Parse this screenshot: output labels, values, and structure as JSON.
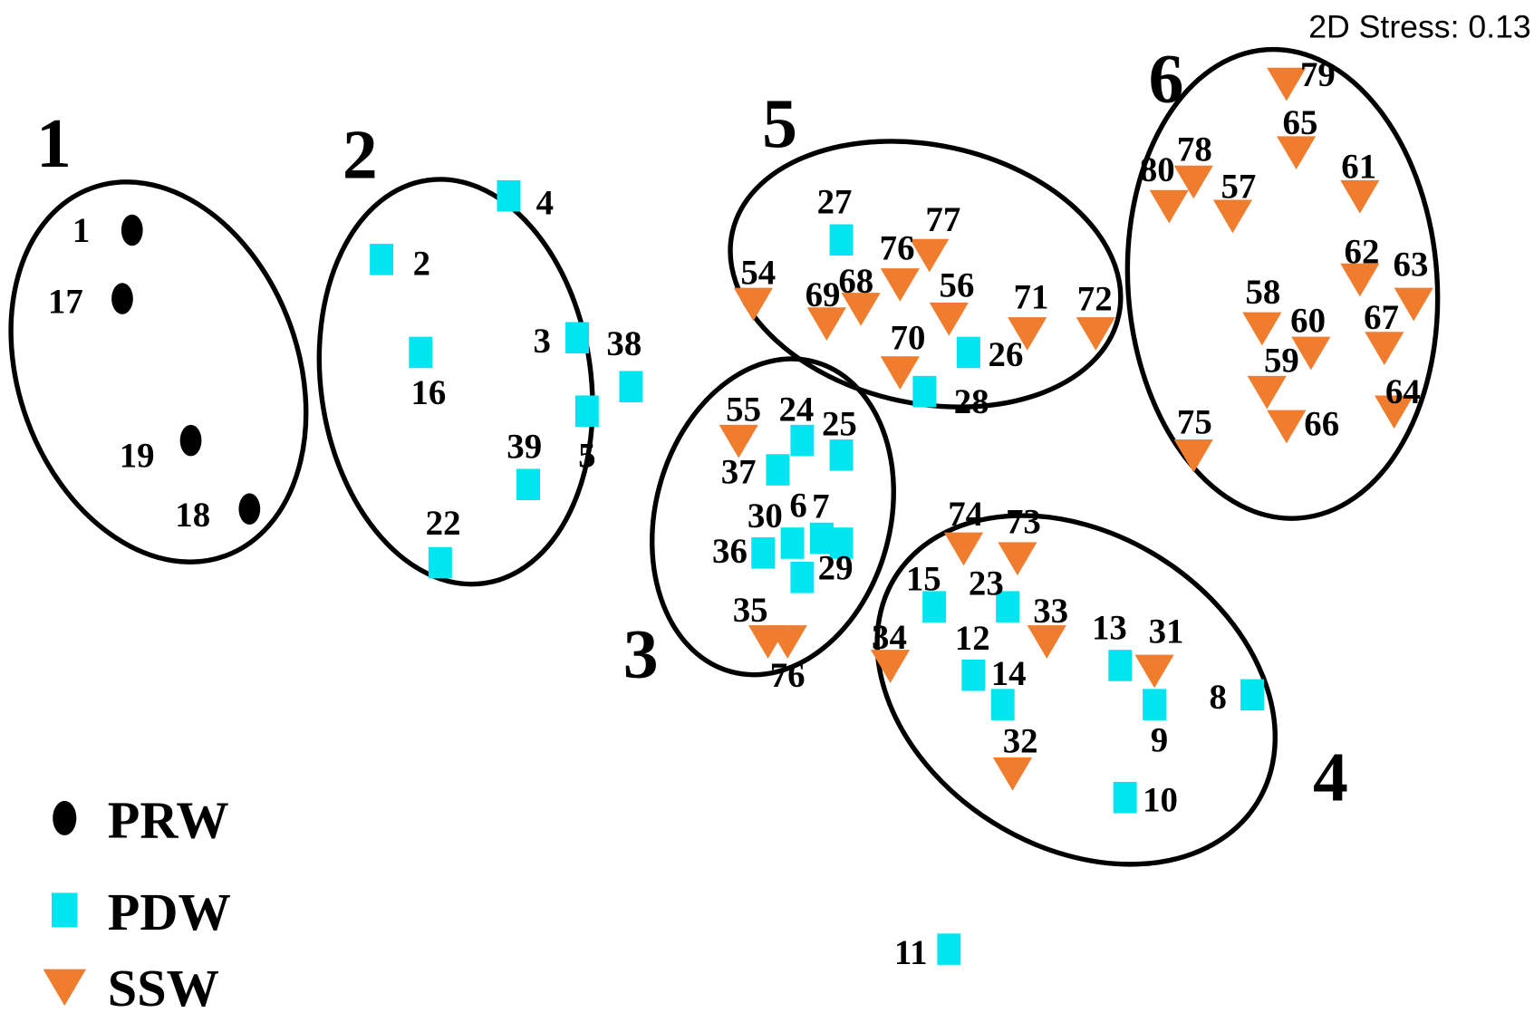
{
  "chart_data": {
    "type": "scatter",
    "title": "",
    "xlabel": "",
    "ylabel": "",
    "annotation": "2D Stress: 0.13",
    "grid": false,
    "axes_shown": false,
    "legend_placement": "bottom-left",
    "groups": [
      {
        "name": "PRW",
        "marker": "ellipse",
        "color": "#000000"
      },
      {
        "name": "PDW",
        "marker": "square",
        "color": "#00E5F0"
      },
      {
        "name": "SSW",
        "marker": "triangle-down",
        "color": "#F07D2D"
      }
    ],
    "clusters": [
      "1",
      "2",
      "3",
      "4",
      "5",
      "6"
    ],
    "points": [
      {
        "label": "1",
        "group": "PRW",
        "x": -1.33,
        "y": 0.53
      },
      {
        "label": "17",
        "group": "PRW",
        "x": -1.35,
        "y": 0.39
      },
      {
        "label": "19",
        "group": "PRW",
        "x": -1.21,
        "y": 0.1
      },
      {
        "label": "18",
        "group": "PRW",
        "x": -1.09,
        "y": -0.04
      },
      {
        "label": "4",
        "group": "PDW",
        "x": -0.56,
        "y": 0.6
      },
      {
        "label": "2",
        "group": "PDW",
        "x": -0.82,
        "y": 0.47
      },
      {
        "label": "16",
        "group": "PDW",
        "x": -0.74,
        "y": 0.28
      },
      {
        "label": "3",
        "group": "PDW",
        "x": -0.42,
        "y": 0.31
      },
      {
        "label": "38",
        "group": "PDW",
        "x": -0.31,
        "y": 0.21
      },
      {
        "label": "5",
        "group": "PDW",
        "x": -0.4,
        "y": 0.16
      },
      {
        "label": "39",
        "group": "PDW",
        "x": -0.52,
        "y": 0.01
      },
      {
        "label": "22",
        "group": "PDW",
        "x": -0.7,
        "y": -0.15
      },
      {
        "label": "27",
        "group": "PDW",
        "x": 0.12,
        "y": 0.51
      },
      {
        "label": "26",
        "group": "PDW",
        "x": 0.38,
        "y": 0.28
      },
      {
        "label": "28",
        "group": "PDW",
        "x": 0.29,
        "y": 0.2
      },
      {
        "label": "24",
        "group": "PDW",
        "x": 0.04,
        "y": 0.1
      },
      {
        "label": "25",
        "group": "PDW",
        "x": 0.12,
        "y": 0.07
      },
      {
        "label": "37",
        "group": "PDW",
        "x": -0.01,
        "y": 0.04
      },
      {
        "label": "36",
        "group": "PDW",
        "x": -0.04,
        "y": -0.13
      },
      {
        "label": "30",
        "group": "PDW",
        "x": 0.02,
        "y": -0.11
      },
      {
        "label": "6",
        "group": "PDW",
        "x": 0.08,
        "y": -0.1
      },
      {
        "label": "7",
        "group": "PDW",
        "x": 0.12,
        "y": -0.11
      },
      {
        "label": "29",
        "group": "PDW",
        "x": 0.04,
        "y": -0.18
      },
      {
        "label": "15",
        "group": "PDW",
        "x": 0.31,
        "y": -0.24
      },
      {
        "label": "23",
        "group": "PDW",
        "x": 0.46,
        "y": -0.24
      },
      {
        "label": "12",
        "group": "PDW",
        "x": 0.39,
        "y": -0.38
      },
      {
        "label": "14",
        "group": "PDW",
        "x": 0.45,
        "y": -0.44
      },
      {
        "label": "13",
        "group": "PDW",
        "x": 0.69,
        "y": -0.36
      },
      {
        "label": "9",
        "group": "PDW",
        "x": 0.76,
        "y": -0.44
      },
      {
        "label": "8",
        "group": "PDW",
        "x": 0.96,
        "y": -0.42
      },
      {
        "label": "10",
        "group": "PDW",
        "x": 0.7,
        "y": -0.63
      },
      {
        "label": "11",
        "group": "PDW",
        "x": 0.34,
        "y": -0.94
      },
      {
        "label": "79",
        "group": "SSW",
        "x": 1.03,
        "y": 0.83
      },
      {
        "label": "65",
        "group": "SSW",
        "x": 1.05,
        "y": 0.69
      },
      {
        "label": "80",
        "group": "SSW",
        "x": 0.79,
        "y": 0.58
      },
      {
        "label": "78",
        "group": "SSW",
        "x": 0.84,
        "y": 0.63
      },
      {
        "label": "57",
        "group": "SSW",
        "x": 0.92,
        "y": 0.56
      },
      {
        "label": "61",
        "group": "SSW",
        "x": 1.18,
        "y": 0.6
      },
      {
        "label": "62",
        "group": "SSW",
        "x": 1.18,
        "y": 0.43
      },
      {
        "label": "63",
        "group": "SSW",
        "x": 1.29,
        "y": 0.38
      },
      {
        "label": "58",
        "group": "SSW",
        "x": 0.98,
        "y": 0.33
      },
      {
        "label": "60",
        "group": "SSW",
        "x": 1.08,
        "y": 0.28
      },
      {
        "label": "67",
        "group": "SSW",
        "x": 1.23,
        "y": 0.29
      },
      {
        "label": "59",
        "group": "SSW",
        "x": 0.99,
        "y": 0.2
      },
      {
        "label": "66",
        "group": "SSW",
        "x": 1.03,
        "y": 0.13
      },
      {
        "label": "64",
        "group": "SSW",
        "x": 1.25,
        "y": 0.16
      },
      {
        "label": "75",
        "group": "SSW",
        "x": 0.84,
        "y": 0.07
      },
      {
        "label": "77",
        "group": "SSW",
        "x": 0.3,
        "y": 0.48
      },
      {
        "label": "76",
        "group": "SSW",
        "x": 0.24,
        "y": 0.42
      },
      {
        "label": "56",
        "group": "SSW",
        "x": 0.34,
        "y": 0.35
      },
      {
        "label": "71",
        "group": "SSW",
        "x": 0.5,
        "y": 0.32
      },
      {
        "label": "72",
        "group": "SSW",
        "x": 0.64,
        "y": 0.32
      },
      {
        "label": "54",
        "group": "SSW",
        "x": -0.06,
        "y": 0.38
      },
      {
        "label": "69",
        "group": "SSW",
        "x": 0.09,
        "y": 0.34
      },
      {
        "label": "68",
        "group": "SSW",
        "x": 0.16,
        "y": 0.37
      },
      {
        "label": "70",
        "group": "SSW",
        "x": 0.24,
        "y": 0.24
      },
      {
        "label": "55",
        "group": "SSW",
        "x": -0.09,
        "y": 0.1
      },
      {
        "label": "35",
        "group": "SSW",
        "x": -0.03,
        "y": -0.31
      },
      {
        "label": "76",
        "group": "SSW",
        "x": 0.01,
        "y": -0.31
      },
      {
        "label": "74",
        "group": "SSW",
        "x": 0.37,
        "y": -0.12
      },
      {
        "label": "73",
        "group": "SSW",
        "x": 0.48,
        "y": -0.14
      },
      {
        "label": "33",
        "group": "SSW",
        "x": 0.54,
        "y": -0.31
      },
      {
        "label": "34",
        "group": "SSW",
        "x": 0.22,
        "y": -0.36
      },
      {
        "label": "31",
        "group": "SSW",
        "x": 0.76,
        "y": -0.37
      },
      {
        "label": "32",
        "group": "SSW",
        "x": 0.47,
        "y": -0.58
      }
    ]
  }
}
